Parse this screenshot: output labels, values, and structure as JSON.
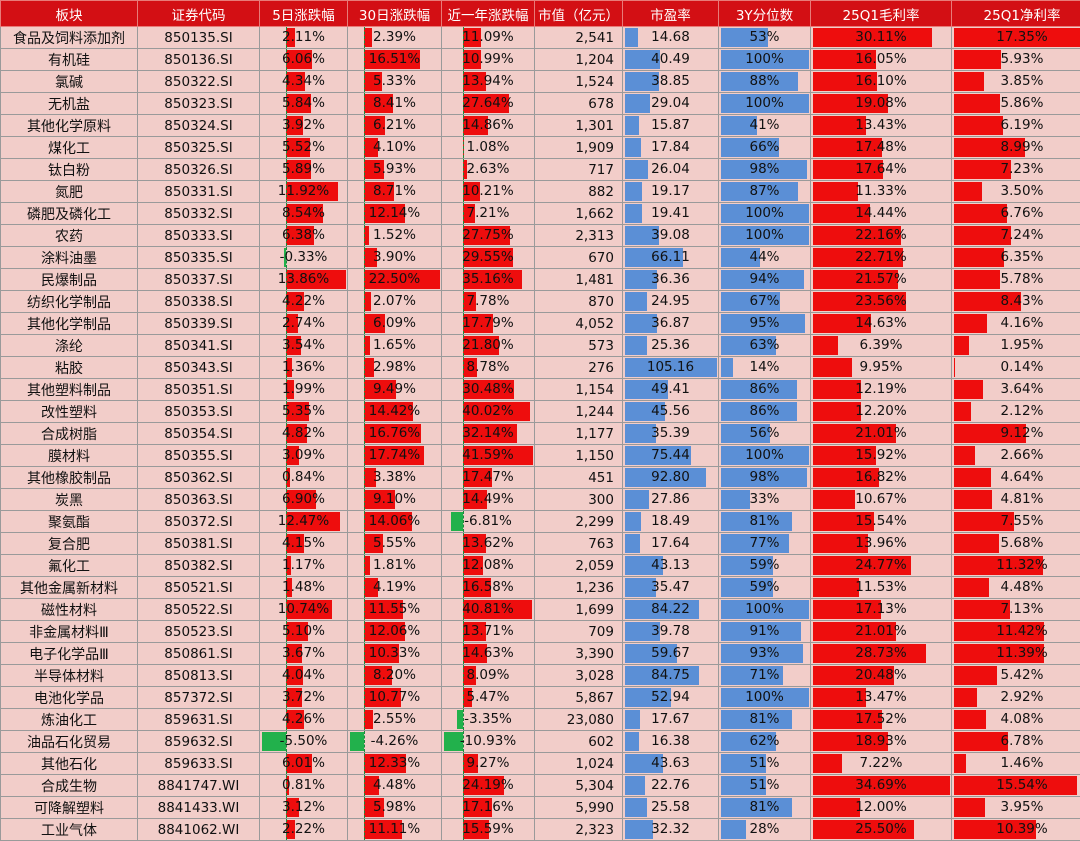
{
  "chart_data": {
    "type": "table",
    "headers": [
      "板块",
      "证券代码",
      "5日涨跌幅",
      "30日涨跌幅",
      "近一年涨跌幅",
      "市值（亿元）",
      "市盈率",
      "3Y分位数",
      "25Q1毛利率",
      "25Q1净利率"
    ],
    "rows": [
      {
        "name": "食品及饲料添加剂",
        "code": "850135.SI",
        "d5": 2.11,
        "d30": 2.39,
        "y1": 11.09,
        "mcap": "2,541",
        "pe": 14.68,
        "pct3y": 53,
        "gm": 30.11,
        "nm": 17.35
      },
      {
        "name": "有机硅",
        "code": "850136.SI",
        "d5": 6.06,
        "d30": 16.51,
        "y1": 10.99,
        "mcap": "1,204",
        "pe": 40.49,
        "pct3y": 100,
        "gm": 16.05,
        "nm": 5.93
      },
      {
        "name": "氯碱",
        "code": "850322.SI",
        "d5": 4.34,
        "d30": 5.33,
        "y1": 13.94,
        "mcap": "1,524",
        "pe": 38.85,
        "pct3y": 88,
        "gm": 16.1,
        "nm": 3.85
      },
      {
        "name": "无机盐",
        "code": "850323.SI",
        "d5": 5.84,
        "d30": 8.41,
        "y1": 27.64,
        "mcap": "678",
        "pe": 29.04,
        "pct3y": 100,
        "gm": 19.08,
        "nm": 5.86
      },
      {
        "name": "其他化学原料",
        "code": "850324.SI",
        "d5": 3.92,
        "d30": 6.21,
        "y1": 14.86,
        "mcap": "1,301",
        "pe": 15.87,
        "pct3y": 41,
        "gm": 13.43,
        "nm": 6.19
      },
      {
        "name": "煤化工",
        "code": "850325.SI",
        "d5": 5.52,
        "d30": 4.1,
        "y1": 1.08,
        "mcap": "1,909",
        "pe": 17.84,
        "pct3y": 66,
        "gm": 17.48,
        "nm": 8.99
      },
      {
        "name": "钛白粉",
        "code": "850326.SI",
        "d5": 5.89,
        "d30": 5.93,
        "y1": 2.63,
        "mcap": "717",
        "pe": 26.04,
        "pct3y": 98,
        "gm": 17.64,
        "nm": 7.23
      },
      {
        "name": "氮肥",
        "code": "850331.SI",
        "d5": 11.92,
        "d30": 8.71,
        "y1": 10.21,
        "mcap": "882",
        "pe": 19.17,
        "pct3y": 87,
        "gm": 11.33,
        "nm": 3.5
      },
      {
        "name": "磷肥及磷化工",
        "code": "850332.SI",
        "d5": 8.54,
        "d30": 12.14,
        "y1": 7.21,
        "mcap": "1,662",
        "pe": 19.41,
        "pct3y": 100,
        "gm": 14.44,
        "nm": 6.76
      },
      {
        "name": "农药",
        "code": "850333.SI",
        "d5": 6.38,
        "d30": 1.52,
        "y1": 27.75,
        "mcap": "2,313",
        "pe": 39.08,
        "pct3y": 100,
        "gm": 22.16,
        "nm": 7.24
      },
      {
        "name": "涂料油墨",
        "code": "850335.SI",
        "d5": -0.33,
        "d30": 3.9,
        "y1": 29.55,
        "mcap": "670",
        "pe": 66.11,
        "pct3y": 44,
        "gm": 22.71,
        "nm": 6.35
      },
      {
        "name": "民爆制品",
        "code": "850337.SI",
        "d5": 13.86,
        "d30": 22.5,
        "y1": 35.16,
        "mcap": "1,481",
        "pe": 36.36,
        "pct3y": 94,
        "gm": 21.57,
        "nm": 5.78
      },
      {
        "name": "纺织化学制品",
        "code": "850338.SI",
        "d5": 4.22,
        "d30": 2.07,
        "y1": 7.78,
        "mcap": "870",
        "pe": 24.95,
        "pct3y": 67,
        "gm": 23.56,
        "nm": 8.43
      },
      {
        "name": "其他化学制品",
        "code": "850339.SI",
        "d5": 2.74,
        "d30": 6.09,
        "y1": 17.79,
        "mcap": "4,052",
        "pe": 36.87,
        "pct3y": 95,
        "gm": 14.63,
        "nm": 4.16
      },
      {
        "name": "涤纶",
        "code": "850341.SI",
        "d5": 3.54,
        "d30": 1.65,
        "y1": 21.8,
        "mcap": "573",
        "pe": 25.36,
        "pct3y": 63,
        "gm": 6.39,
        "nm": 1.95
      },
      {
        "name": "粘胶",
        "code": "850343.SI",
        "d5": 1.36,
        "d30": 2.98,
        "y1": 8.78,
        "mcap": "276",
        "pe": 105.16,
        "pct3y": 14,
        "gm": 9.95,
        "nm": 0.14
      },
      {
        "name": "其他塑料制品",
        "code": "850351.SI",
        "d5": 1.99,
        "d30": 9.49,
        "y1": 30.48,
        "mcap": "1,154",
        "pe": 49.41,
        "pct3y": 86,
        "gm": 12.19,
        "nm": 3.64
      },
      {
        "name": "改性塑料",
        "code": "850353.SI",
        "d5": 5.35,
        "d30": 14.42,
        "y1": 40.02,
        "mcap": "1,244",
        "pe": 45.56,
        "pct3y": 86,
        "gm": 12.2,
        "nm": 2.12
      },
      {
        "name": "合成树脂",
        "code": "850354.SI",
        "d5": 4.82,
        "d30": 16.76,
        "y1": 32.14,
        "mcap": "1,177",
        "pe": 35.39,
        "pct3y": 56,
        "gm": 21.01,
        "nm": 9.12
      },
      {
        "name": "膜材料",
        "code": "850355.SI",
        "d5": 3.09,
        "d30": 17.74,
        "y1": 41.59,
        "mcap": "1,150",
        "pe": 75.44,
        "pct3y": 100,
        "gm": 15.92,
        "nm": 2.66
      },
      {
        "name": "其他橡胶制品",
        "code": "850362.SI",
        "d5": 0.84,
        "d30": 3.38,
        "y1": 17.47,
        "mcap": "451",
        "pe": 92.8,
        "pct3y": 98,
        "gm": 16.82,
        "nm": 4.64
      },
      {
        "name": "炭黑",
        "code": "850363.SI",
        "d5": 6.9,
        "d30": 9.1,
        "y1": 14.49,
        "mcap": "300",
        "pe": 27.86,
        "pct3y": 33,
        "gm": 10.67,
        "nm": 4.81
      },
      {
        "name": "聚氨酯",
        "code": "850372.SI",
        "d5": 12.47,
        "d30": 14.06,
        "y1": -6.81,
        "mcap": "2,299",
        "pe": 18.49,
        "pct3y": 81,
        "gm": 15.54,
        "nm": 7.55
      },
      {
        "name": "复合肥",
        "code": "850381.SI",
        "d5": 4.15,
        "d30": 5.55,
        "y1": 13.62,
        "mcap": "763",
        "pe": 17.64,
        "pct3y": 77,
        "gm": 13.96,
        "nm": 5.68
      },
      {
        "name": "氟化工",
        "code": "850382.SI",
        "d5": 1.17,
        "d30": 1.81,
        "y1": 12.08,
        "mcap": "2,059",
        "pe": 43.13,
        "pct3y": 59,
        "gm": 24.77,
        "nm": 11.32
      },
      {
        "name": "其他金属新材料",
        "code": "850521.SI",
        "d5": 1.48,
        "d30": 4.19,
        "y1": 16.58,
        "mcap": "1,236",
        "pe": 35.47,
        "pct3y": 59,
        "gm": 11.53,
        "nm": 4.48
      },
      {
        "name": "磁性材料",
        "code": "850522.SI",
        "d5": 10.74,
        "d30": 11.55,
        "y1": 40.81,
        "mcap": "1,699",
        "pe": 84.22,
        "pct3y": 100,
        "gm": 17.13,
        "nm": 7.13
      },
      {
        "name": "非金属材料Ⅲ",
        "code": "850523.SI",
        "d5": 5.1,
        "d30": 12.06,
        "y1": 13.71,
        "mcap": "709",
        "pe": 39.78,
        "pct3y": 91,
        "gm": 21.01,
        "nm": 11.42
      },
      {
        "name": "电子化学品Ⅲ",
        "code": "850861.SI",
        "d5": 3.67,
        "d30": 10.33,
        "y1": 14.63,
        "mcap": "3,390",
        "pe": 59.67,
        "pct3y": 93,
        "gm": 28.73,
        "nm": 11.39
      },
      {
        "name": "半导体材料",
        "code": "850813.SI",
        "d5": 4.04,
        "d30": 8.2,
        "y1": 8.09,
        "mcap": "3,028",
        "pe": 84.75,
        "pct3y": 71,
        "gm": 20.48,
        "nm": 5.42
      },
      {
        "name": "电池化学品",
        "code": "857372.SI",
        "d5": 3.72,
        "d30": 10.77,
        "y1": 5.47,
        "mcap": "5,867",
        "pe": 52.94,
        "pct3y": 100,
        "gm": 13.47,
        "nm": 2.92
      },
      {
        "name": "炼油化工",
        "code": "859631.SI",
        "d5": 4.26,
        "d30": 2.55,
        "y1": -3.35,
        "mcap": "23,080",
        "pe": 17.67,
        "pct3y": 81,
        "gm": 17.52,
        "nm": 4.08
      },
      {
        "name": "油品石化贸易",
        "code": "859632.SI",
        "d5": -5.5,
        "d30": -4.26,
        "y1": -10.93,
        "mcap": "602",
        "pe": 16.38,
        "pct3y": 62,
        "gm": 18.93,
        "nm": 6.78
      },
      {
        "name": "其他石化",
        "code": "859633.SI",
        "d5": 6.01,
        "d30": 12.33,
        "y1": 9.27,
        "mcap": "1,024",
        "pe": 43.63,
        "pct3y": 51,
        "gm": 7.22,
        "nm": 1.46
      },
      {
        "name": "合成生物",
        "code": "8841747.WI",
        "d5": 0.81,
        "d30": 4.48,
        "y1": 24.19,
        "mcap": "5,304",
        "pe": 22.76,
        "pct3y": 51,
        "gm": 34.69,
        "nm": 15.54
      },
      {
        "name": "可降解塑料",
        "code": "8841433.WI",
        "d5": 3.12,
        "d30": 5.98,
        "y1": 17.16,
        "mcap": "5,990",
        "pe": 25.58,
        "pct3y": 81,
        "gm": 12.0,
        "nm": 3.95
      },
      {
        "name": "工业气体",
        "code": "8841062.WI",
        "d5": 2.22,
        "d30": 11.11,
        "y1": 15.59,
        "mcap": "2,323",
        "pe": 32.32,
        "pct3y": 28,
        "gm": 25.5,
        "nm": 10.39
      }
    ]
  },
  "colors": {
    "header_bg": "#d30f14",
    "body_bg": "#f2cdc9",
    "positive_bar": "#ee0d0d",
    "negative_bar": "#22b14c",
    "blue_bar": "#5b8fd6"
  }
}
